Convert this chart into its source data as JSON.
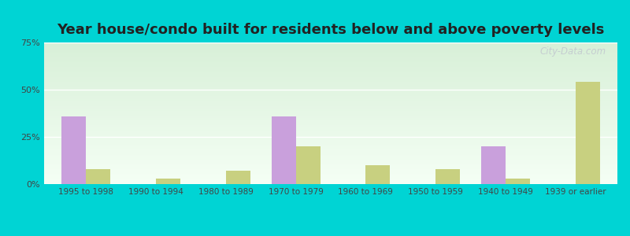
{
  "title": "Year house/condo built for residents below and above poverty levels",
  "categories": [
    "1995 to 1998",
    "1990 to 1994",
    "1980 to 1989",
    "1970 to 1979",
    "1960 to 1969",
    "1950 to 1959",
    "1940 to 1949",
    "1939 or earlier"
  ],
  "below_poverty": [
    36,
    0,
    0,
    36,
    0,
    0,
    20,
    0
  ],
  "above_poverty": [
    8,
    3,
    7,
    20,
    10,
    8,
    3,
    54
  ],
  "below_color": "#c9a0dc",
  "above_color": "#c8d080",
  "bar_width": 0.35,
  "ylim": [
    0,
    75
  ],
  "yticks": [
    0,
    25,
    50,
    75
  ],
  "ytick_labels": [
    "0%",
    "25%",
    "50%",
    "75%"
  ],
  "title_fontsize": 13,
  "watermark": "City-Data.com",
  "outer_bg": "#00d4d4",
  "grad_top": "#d8f0d8",
  "grad_bottom": "#f5fff5"
}
